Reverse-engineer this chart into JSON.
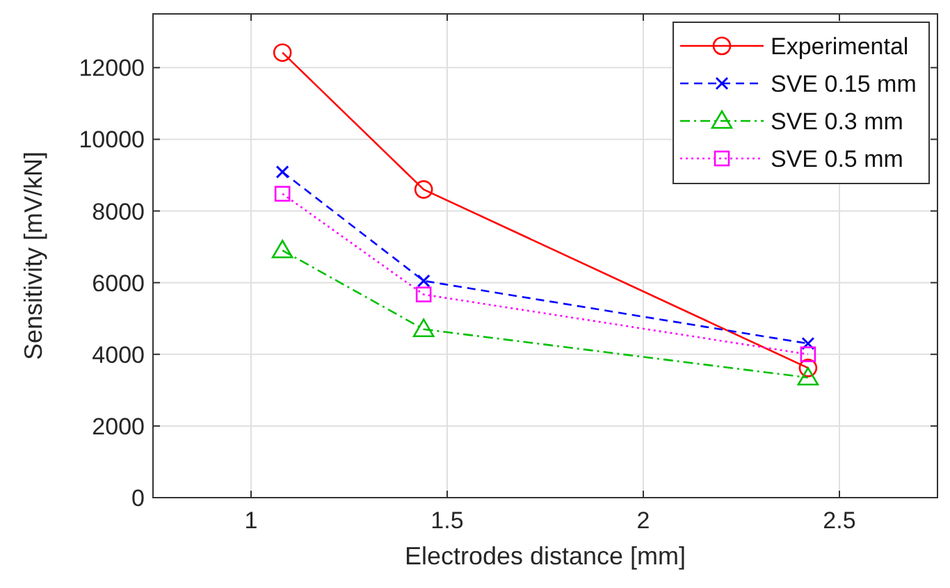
{
  "chart_data": {
    "type": "line",
    "xlabel": "Electrodes distance [mm]",
    "ylabel": "Sensitivity [mV/kN]",
    "x": [
      1.08,
      1.44,
      2.42
    ],
    "xlim": [
      0.75,
      2.75
    ],
    "xticks": [
      1,
      1.5,
      2,
      2.5
    ],
    "ylim": [
      0,
      13500
    ],
    "yticks": [
      0,
      2000,
      4000,
      6000,
      8000,
      10000,
      12000
    ],
    "grid": true,
    "legend": "top right",
    "series": [
      {
        "name": "Experimental",
        "color": "#ff0000",
        "values": [
          12420,
          8600,
          3620
        ],
        "marker": "circle",
        "line_style": "solid"
      },
      {
        "name": "SVE 0.15 mm",
        "color": "#0000ff",
        "values": [
          9090,
          6050,
          4300
        ],
        "marker": "cross",
        "line_style": "dashed"
      },
      {
        "name": "SVE 0.3 mm",
        "color": "#00c000",
        "values": [
          6900,
          4700,
          3350
        ],
        "marker": "triangle",
        "line_style": "dashdot"
      },
      {
        "name": "SVE 0.5 mm",
        "color": "#ff00ff",
        "values": [
          8480,
          5670,
          4000
        ],
        "marker": "square",
        "line_style": "dotted"
      }
    ]
  }
}
